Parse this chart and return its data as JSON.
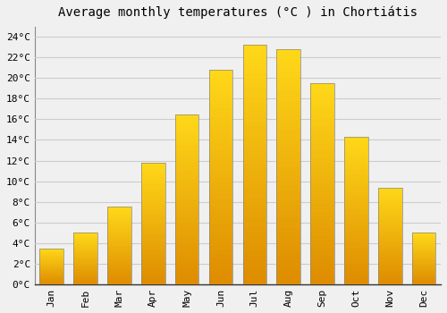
{
  "title": "Average monthly temperatures (°C ) in Chortiátis",
  "months": [
    "Jan",
    "Feb",
    "Mar",
    "Apr",
    "May",
    "Jun",
    "Jul",
    "Aug",
    "Sep",
    "Oct",
    "Nov",
    "Dec"
  ],
  "values": [
    3.5,
    5.0,
    7.5,
    11.8,
    16.5,
    20.8,
    23.2,
    22.8,
    19.5,
    14.3,
    9.4,
    5.0
  ],
  "bar_color_main": "#FFA500",
  "bar_color_light": "#FFD060",
  "bar_color_dark": "#E08000",
  "bar_edge_color": "#999999",
  "ylim": [
    0,
    25
  ],
  "yticks": [
    0,
    2,
    4,
    6,
    8,
    10,
    12,
    14,
    16,
    18,
    20,
    22,
    24
  ],
  "ytick_labels": [
    "0°C",
    "2°C",
    "4°C",
    "6°C",
    "8°C",
    "10°C",
    "12°C",
    "14°C",
    "16°C",
    "18°C",
    "20°C",
    "22°C",
    "24°C"
  ],
  "background_color": "#f0f0f0",
  "plot_bg_color": "#f0f0f0",
  "grid_color": "#cccccc",
  "title_fontsize": 10,
  "tick_fontsize": 8,
  "font_family": "monospace",
  "bar_width": 0.7
}
